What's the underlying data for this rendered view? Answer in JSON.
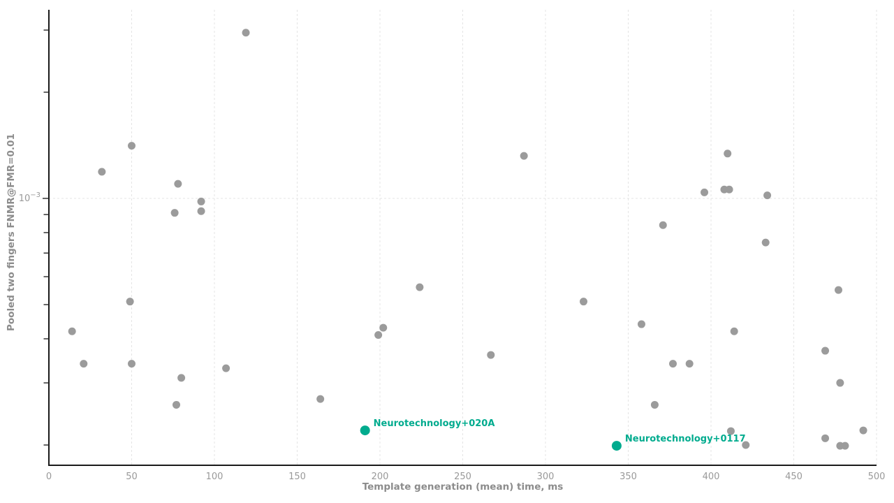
{
  "chart_data": {
    "type": "scatter",
    "title": "",
    "xlabel": "Template generation (mean) time, ms",
    "ylabel": "Pooled two fingers FNMR@FMR=0.01",
    "legend": "none",
    "background": "#ffffff",
    "x_axis": {
      "lim": [
        0,
        500
      ],
      "ticks": [
        0,
        50,
        100,
        150,
        200,
        250,
        300,
        350,
        400,
        450,
        500
      ]
    },
    "y_axis": {
      "scale": "log",
      "lim": [
        0.000175,
        0.0034
      ],
      "major_ticks": [
        {
          "value": 0.001,
          "label_base": "10",
          "label_exp": "−3"
        }
      ],
      "minor_ticks": [
        0.003,
        0.002,
        0.0009,
        0.0008,
        0.0007,
        0.0006,
        0.0005,
        0.0004,
        0.0003,
        0.0002
      ]
    },
    "grid": {
      "x_lines": [
        50,
        100,
        150,
        200,
        250,
        300,
        350,
        400,
        450,
        500
      ],
      "y_lines": [
        0.001
      ]
    },
    "series": [
      {
        "name": "other-algorithms",
        "color": "#9b9b9b",
        "marker": "circle",
        "radius": 5.5,
        "points": [
          [
            119,
            0.00295
          ],
          [
            32,
            0.00119
          ],
          [
            50,
            0.00141
          ],
          [
            78,
            0.0011
          ],
          [
            76,
            0.00091
          ],
          [
            92,
            0.00098
          ],
          [
            92,
            0.00092
          ],
          [
            287,
            0.00132
          ],
          [
            410,
            0.00134
          ],
          [
            396,
            0.00104
          ],
          [
            408,
            0.00106
          ],
          [
            411,
            0.00106
          ],
          [
            434,
            0.00102
          ],
          [
            371,
            0.00084
          ],
          [
            433,
            0.00075
          ],
          [
            224,
            0.00056
          ],
          [
            49,
            0.00051
          ],
          [
            323,
            0.00051
          ],
          [
            477,
            0.00055
          ],
          [
            14,
            0.00042
          ],
          [
            202,
            0.00043
          ],
          [
            199,
            0.00041
          ],
          [
            358,
            0.00044
          ],
          [
            414,
            0.00042
          ],
          [
            469,
            0.00037
          ],
          [
            21,
            0.00034
          ],
          [
            50,
            0.00034
          ],
          [
            267,
            0.00036
          ],
          [
            377,
            0.00034
          ],
          [
            387,
            0.00034
          ],
          [
            107,
            0.00033
          ],
          [
            80,
            0.00031
          ],
          [
            478,
            0.0003
          ],
          [
            164,
            0.00027
          ],
          [
            77,
            0.00026
          ],
          [
            366,
            0.00026
          ],
          [
            412,
            0.000219
          ],
          [
            492,
            0.00022
          ],
          [
            421,
            0.0002
          ],
          [
            469,
            0.000209
          ],
          [
            478,
            0.000199
          ],
          [
            481,
            0.000199
          ]
        ]
      },
      {
        "name": "highlighted-algorithms",
        "color": "#00ab8e",
        "marker": "circle",
        "radius": 7,
        "points": [
          {
            "label": "Neurotechnology+020A",
            "x": 191,
            "y": 0.00022
          },
          {
            "label": "Neurotechnology+0117",
            "x": 343,
            "y": 0.000199
          }
        ]
      }
    ]
  },
  "colors": {
    "accent": "#00ab8e",
    "point_gray": "#9b9b9b",
    "grid": "#e4e4e4",
    "spine": "#1a1a1a",
    "tick_label": "#999999",
    "axis_title": "#8c8c8c"
  }
}
